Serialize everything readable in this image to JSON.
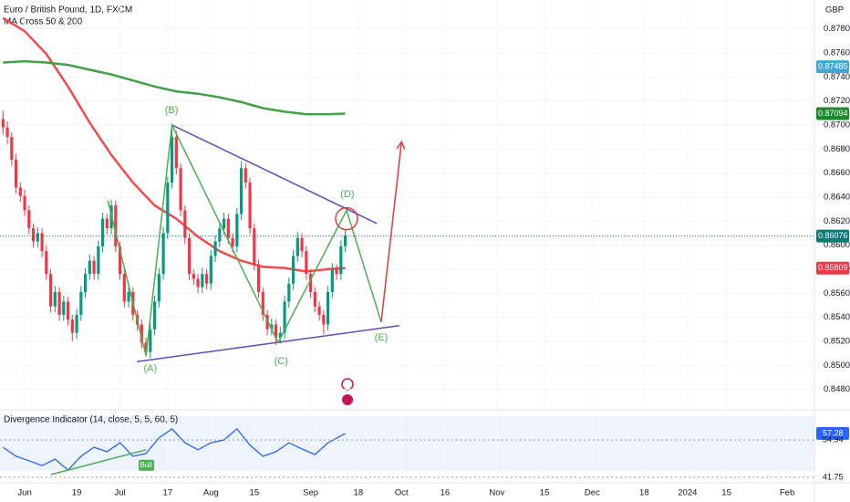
{
  "chart_data": [
    {
      "type": "candlestick",
      "title": "Euro / British Pound, 1D, FXCM",
      "subtitle": "MA Cross 50 & 200",
      "currency": "GBP",
      "up_color": "#089981",
      "down_color": "#f23645",
      "xlim": [
        -5.7,
        182.3
      ],
      "ylim": [
        0.8466,
        0.8804
      ],
      "yticks": [
        {
          "value": 0.878,
          "label": "0.87800"
        },
        {
          "value": 0.876,
          "label": "0.87600"
        },
        {
          "value": 0.874,
          "label": "0.87400"
        },
        {
          "value": 0.872,
          "label": "0.87200"
        },
        {
          "value": 0.87,
          "label": "0.87000"
        },
        {
          "value": 0.868,
          "label": "0.86800"
        },
        {
          "value": 0.866,
          "label": "0.86600"
        },
        {
          "value": 0.864,
          "label": "0.86400"
        },
        {
          "value": 0.862,
          "label": "0.86200"
        },
        {
          "value": 0.86,
          "label": "0.86000"
        },
        {
          "value": 0.858,
          "label": "0.85800"
        },
        {
          "value": 0.856,
          "label": "0.85600"
        },
        {
          "value": 0.854,
          "label": "0.85400"
        },
        {
          "value": 0.852,
          "label": "0.85200"
        },
        {
          "value": 0.85,
          "label": "0.85000"
        },
        {
          "value": 0.848,
          "label": "0.84800"
        }
      ],
      "xticks": [
        {
          "value": 0,
          "label": "Jun"
        },
        {
          "value": 12,
          "label": "19"
        },
        {
          "value": 22,
          "label": "Jul"
        },
        {
          "value": 33,
          "label": "17"
        },
        {
          "value": 43,
          "label": "Aug"
        },
        {
          "value": 53,
          "label": "15"
        },
        {
          "value": 66,
          "label": "Sep"
        },
        {
          "value": 77,
          "label": "18"
        },
        {
          "value": 87,
          "label": "Oct"
        },
        {
          "value": 97,
          "label": "16"
        },
        {
          "value": 109,
          "label": "Nov"
        },
        {
          "value": 120,
          "label": "15"
        },
        {
          "value": 131,
          "label": "Dec"
        },
        {
          "value": 143,
          "label": "18"
        },
        {
          "value": 153,
          "label": "2024"
        },
        {
          "value": 162,
          "label": "15"
        },
        {
          "value": 176,
          "label": "Feb"
        }
      ],
      "x": [
        -5,
        -4,
        -3,
        -2,
        -1,
        0,
        1,
        2,
        3,
        4,
        5,
        6,
        7,
        8,
        9,
        10,
        11,
        12,
        13,
        14,
        15,
        16,
        17,
        18,
        19,
        20,
        21,
        22,
        23,
        24,
        25,
        26,
        27,
        28,
        29,
        30,
        31,
        32,
        33,
        34,
        35,
        36,
        37,
        38,
        39,
        40,
        41,
        42,
        43,
        44,
        45,
        46,
        47,
        48,
        49,
        50,
        51,
        52,
        53,
        54,
        55,
        56,
        57,
        58,
        59,
        60,
        61,
        62,
        63,
        64,
        65,
        66,
        67,
        68,
        69,
        70,
        71,
        72,
        73,
        74
      ],
      "ohlc": [
        [
          0.8705,
          0.8712,
          0.8692,
          0.8698
        ],
        [
          0.8698,
          0.8703,
          0.8684,
          0.869
        ],
        [
          0.869,
          0.8694,
          0.8666,
          0.8671
        ],
        [
          0.8671,
          0.8676,
          0.8643,
          0.8648
        ],
        [
          0.8648,
          0.8652,
          0.8636,
          0.8641
        ],
        [
          0.8641,
          0.8646,
          0.8624,
          0.8629
        ],
        [
          0.8629,
          0.8633,
          0.8609,
          0.8614
        ],
        [
          0.8614,
          0.8618,
          0.8598,
          0.8603
        ],
        [
          0.8603,
          0.8615,
          0.8598,
          0.861
        ],
        [
          0.861,
          0.8614,
          0.859,
          0.8595
        ],
        [
          0.8595,
          0.86,
          0.8571,
          0.8576
        ],
        [
          0.8576,
          0.858,
          0.8544,
          0.8549
        ],
        [
          0.8549,
          0.8566,
          0.8544,
          0.8561
        ],
        [
          0.8561,
          0.8565,
          0.8537,
          0.8542
        ],
        [
          0.8542,
          0.8558,
          0.8537,
          0.8553
        ],
        [
          0.8553,
          0.8557,
          0.8533,
          0.8538
        ],
        [
          0.8538,
          0.8542,
          0.852,
          0.8527
        ],
        [
          0.8527,
          0.8547,
          0.8522,
          0.8542
        ],
        [
          0.8542,
          0.8566,
          0.8537,
          0.8561
        ],
        [
          0.8561,
          0.8581,
          0.8556,
          0.8576
        ],
        [
          0.8576,
          0.8592,
          0.8571,
          0.8587
        ],
        [
          0.8587,
          0.8591,
          0.8571,
          0.8576
        ],
        [
          0.8576,
          0.8604,
          0.8571,
          0.8599
        ],
        [
          0.8599,
          0.8627,
          0.8594,
          0.8622
        ],
        [
          0.8622,
          0.8626,
          0.8609,
          0.8614
        ],
        [
          0.8614,
          0.8638,
          0.8609,
          0.8633
        ],
        [
          0.8633,
          0.8637,
          0.8594,
          0.8599
        ],
        [
          0.8599,
          0.8603,
          0.8571,
          0.8576
        ],
        [
          0.8576,
          0.858,
          0.8548,
          0.8553
        ],
        [
          0.8553,
          0.8566,
          0.8548,
          0.8561
        ],
        [
          0.8561,
          0.8565,
          0.8537,
          0.8542
        ],
        [
          0.8542,
          0.8546,
          0.8529,
          0.8534
        ],
        [
          0.8534,
          0.8538,
          0.8514,
          0.8519
        ],
        [
          0.8519,
          0.8523,
          0.8507,
          0.8511
        ],
        [
          0.8511,
          0.8535,
          0.8506,
          0.853
        ],
        [
          0.853,
          0.8558,
          0.8525,
          0.8553
        ],
        [
          0.8553,
          0.8581,
          0.8548,
          0.8576
        ],
        [
          0.8576,
          0.8615,
          0.8571,
          0.861
        ],
        [
          0.861,
          0.8657,
          0.8605,
          0.8652
        ],
        [
          0.8652,
          0.87,
          0.8647,
          0.869
        ],
        [
          0.869,
          0.8695,
          0.8659,
          0.8664
        ],
        [
          0.8664,
          0.8668,
          0.8624,
          0.8629
        ],
        [
          0.8629,
          0.8633,
          0.8601,
          0.8606
        ],
        [
          0.8606,
          0.861,
          0.8571,
          0.8576
        ],
        [
          0.8576,
          0.858,
          0.8567,
          0.8572
        ],
        [
          0.8572,
          0.8576,
          0.856,
          0.8565
        ],
        [
          0.8565,
          0.8581,
          0.856,
          0.8576
        ],
        [
          0.8576,
          0.858,
          0.8563,
          0.8568
        ],
        [
          0.8568,
          0.8596,
          0.8563,
          0.8591
        ],
        [
          0.8591,
          0.8608,
          0.8586,
          0.8603
        ],
        [
          0.8603,
          0.8619,
          0.8598,
          0.8614
        ],
        [
          0.8614,
          0.8627,
          0.8609,
          0.8622
        ],
        [
          0.8622,
          0.8626,
          0.8601,
          0.8606
        ],
        [
          0.8606,
          0.861,
          0.8594,
          0.8599
        ],
        [
          0.8599,
          0.8631,
          0.8594,
          0.8626
        ],
        [
          0.8626,
          0.867,
          0.8621,
          0.8664
        ],
        [
          0.8664,
          0.8668,
          0.8647,
          0.8652
        ],
        [
          0.8652,
          0.8656,
          0.8609,
          0.8614
        ],
        [
          0.8614,
          0.8618,
          0.8579,
          0.8584
        ],
        [
          0.8584,
          0.8588,
          0.8556,
          0.8561
        ],
        [
          0.8561,
          0.8565,
          0.8537,
          0.8542
        ],
        [
          0.8542,
          0.8546,
          0.8525,
          0.853
        ],
        [
          0.853,
          0.8539,
          0.8525,
          0.8534
        ],
        [
          0.8534,
          0.8538,
          0.8517,
          0.8523
        ],
        [
          0.8523,
          0.8532,
          0.8518,
          0.8527
        ],
        [
          0.8527,
          0.8558,
          0.8522,
          0.8553
        ],
        [
          0.8553,
          0.8573,
          0.8548,
          0.8568
        ],
        [
          0.8568,
          0.8596,
          0.8563,
          0.8591
        ],
        [
          0.8591,
          0.8611,
          0.8586,
          0.8606
        ],
        [
          0.8606,
          0.861,
          0.859,
          0.8595
        ],
        [
          0.8595,
          0.8599,
          0.8571,
          0.8576
        ],
        [
          0.8576,
          0.858,
          0.8556,
          0.8561
        ],
        [
          0.8561,
          0.8565,
          0.8544,
          0.8549
        ],
        [
          0.8549,
          0.8553,
          0.8537,
          0.8542
        ],
        [
          0.8542,
          0.8546,
          0.8526,
          0.8534
        ],
        [
          0.8534,
          0.8566,
          0.8529,
          0.8561
        ],
        [
          0.8561,
          0.8585,
          0.8556,
          0.858
        ],
        [
          0.858,
          0.8584,
          0.8571,
          0.8576
        ],
        [
          0.8576,
          0.8604,
          0.8571,
          0.8599
        ],
        [
          0.8599,
          0.8613,
          0.8594,
          0.8608
        ]
      ],
      "lines": [
        {
          "color": "#f04b4b",
          "x": [
            -5,
            0,
            5,
            10,
            15,
            20,
            25,
            30,
            35,
            40,
            45,
            50,
            55,
            60,
            65,
            70,
            74
          ],
          "values": [
            0.8789,
            0.8778,
            0.8759,
            0.8732,
            0.8702,
            0.8675,
            0.8652,
            0.8633,
            0.8622,
            0.8607,
            0.8595,
            0.8587,
            0.8582,
            0.8581,
            0.8578,
            0.858,
            0.85809
          ]
        },
        {
          "color": "#43a047",
          "x": [
            -5,
            0,
            5,
            10,
            15,
            20,
            25,
            30,
            35,
            40,
            45,
            50,
            55,
            60,
            65,
            70,
            74
          ],
          "values": [
            0.8752,
            0.8753,
            0.8752,
            0.875,
            0.8746,
            0.8742,
            0.8737,
            0.8732,
            0.8728,
            0.8726,
            0.8723,
            0.8719,
            0.8714,
            0.8711,
            0.8709,
            0.8709,
            0.87094
          ]
        }
      ],
      "price_labels": [
        {
          "value": 0.87485,
          "color": "#42a5d5"
        },
        {
          "value": 0.87094,
          "color": "#1b8a2b"
        },
        {
          "value": 0.86076,
          "color": "#0b7a75"
        },
        {
          "value": 0.85809,
          "color": "#f23645"
        }
      ],
      "last_price": 0.86076,
      "triangle": {
        "color": "#5e4fb5",
        "lines": [
          {
            "x": [
              34,
              81.3
            ],
            "y": [
              0.87,
              0.8618
            ]
          },
          {
            "x": [
              25.9,
              86.5
            ],
            "y": [
              0.8503,
              0.8533
            ]
          }
        ]
      },
      "zigzag": {
        "color": "#4caf50",
        "x": [
          19.2,
          28,
          34,
          58.5,
          74.3,
          82.3
        ],
        "y": [
          0.8637,
          0.8508,
          0.87,
          0.8519,
          0.8629,
          0.8536
        ]
      },
      "arrow": {
        "color": "#e53935",
        "x": [
          82.3,
          87
        ],
        "y": [
          0.8536,
          0.8686
        ]
      },
      "circle": {
        "color": "#e53935",
        "x": 74.3,
        "y": 0.8622
      },
      "waves": [
        {
          "text": "(A)",
          "x": 29,
          "y": 0.8497
        },
        {
          "text": "(B)",
          "x": 33.9,
          "y": 0.8712
        },
        {
          "text": "(C)",
          "x": 59.2,
          "y": 0.8503
        },
        {
          "text": "(D)",
          "x": 74.5,
          "y": 0.8642
        },
        {
          "text": "(E)",
          "x": 82.3,
          "y": 0.8523
        }
      ],
      "wave_color": "#4caf50"
    },
    {
      "type": "line",
      "title": "Divergence Indicator (14, close, 5, 5, 60, 5)",
      "color": "#2962ff",
      "xlim": [
        -5.7,
        182.3
      ],
      "ylim": [
        40.1,
        64.7
      ],
      "x": [
        -5,
        -2,
        1,
        4,
        7,
        10,
        13,
        16,
        19,
        22,
        25,
        28,
        31,
        34,
        37,
        40,
        43,
        46,
        49,
        52,
        55,
        58,
        61,
        64,
        67,
        70,
        74
      ],
      "values": [
        52.4,
        49.2,
        47.6,
        45.9,
        48.2,
        44.3,
        49.2,
        52.4,
        50.8,
        54.0,
        49.2,
        50.2,
        55.7,
        58.9,
        54.0,
        51.5,
        54.0,
        55.0,
        58.9,
        53.1,
        49.2,
        50.8,
        54.0,
        51.8,
        49.8,
        54.0,
        57.28
      ],
      "levels": [
        {
          "value": 57.28,
          "color": "#2962ff"
        },
        {
          "value": 54.94,
          "color": null
        },
        {
          "value": 41.75,
          "color": null
        }
      ],
      "divergence": {
        "color": "#4caf50",
        "x": [
          6,
          28
        ],
        "y": [
          42.7,
          51.5
        ],
        "label": "Bull"
      }
    }
  ]
}
